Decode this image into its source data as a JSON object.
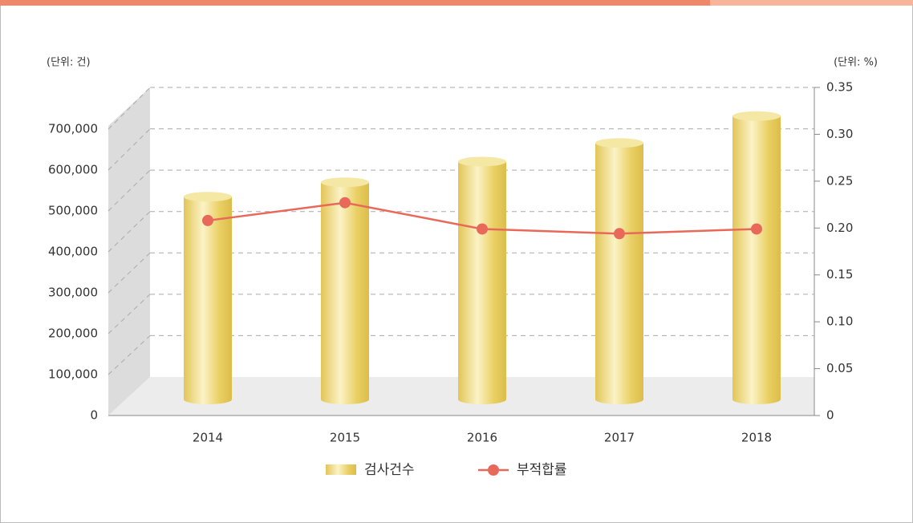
{
  "chart_data": {
    "type": "bar-line",
    "y_unit_label": "(단위: 건)",
    "y2_unit_label": "(단위: %)",
    "categories": [
      "2014",
      "2015",
      "2016",
      "2017",
      "2018"
    ],
    "series": [
      {
        "name": "검사건수",
        "type": "bar",
        "color": "#e6c95a",
        "values": [
          490000,
          525000,
          575000,
          620000,
          685000
        ]
      },
      {
        "name": "부적합률",
        "type": "line",
        "axis": "y2",
        "color": "#e8695a",
        "values": [
          0.208,
          0.227,
          0.199,
          0.194,
          0.199
        ]
      }
    ],
    "ylim": [
      0,
      700000
    ],
    "yticks": [
      0,
      {
        "value": 100000,
        "label": "100,000"
      },
      {
        "value": 200000,
        "label": "200,000"
      },
      {
        "value": 300000,
        "label": "300,000"
      },
      {
        "value": 400000,
        "label": "400,000"
      },
      {
        "value": 500000,
        "label": "500,000"
      },
      {
        "value": 600000,
        "label": "600,000"
      },
      {
        "value": 700000,
        "label": "700,000"
      }
    ],
    "y2lim": [
      0,
      0.35
    ],
    "y2ticks": [
      0,
      0.05,
      {
        "value": 0.1,
        "label": "0.10"
      },
      0.15,
      {
        "value": 0.2,
        "label": "0.20"
      },
      0.25,
      {
        "value": 0.3,
        "label": "0.30"
      },
      0.35
    ],
    "grid": true,
    "legend": "bottom"
  }
}
